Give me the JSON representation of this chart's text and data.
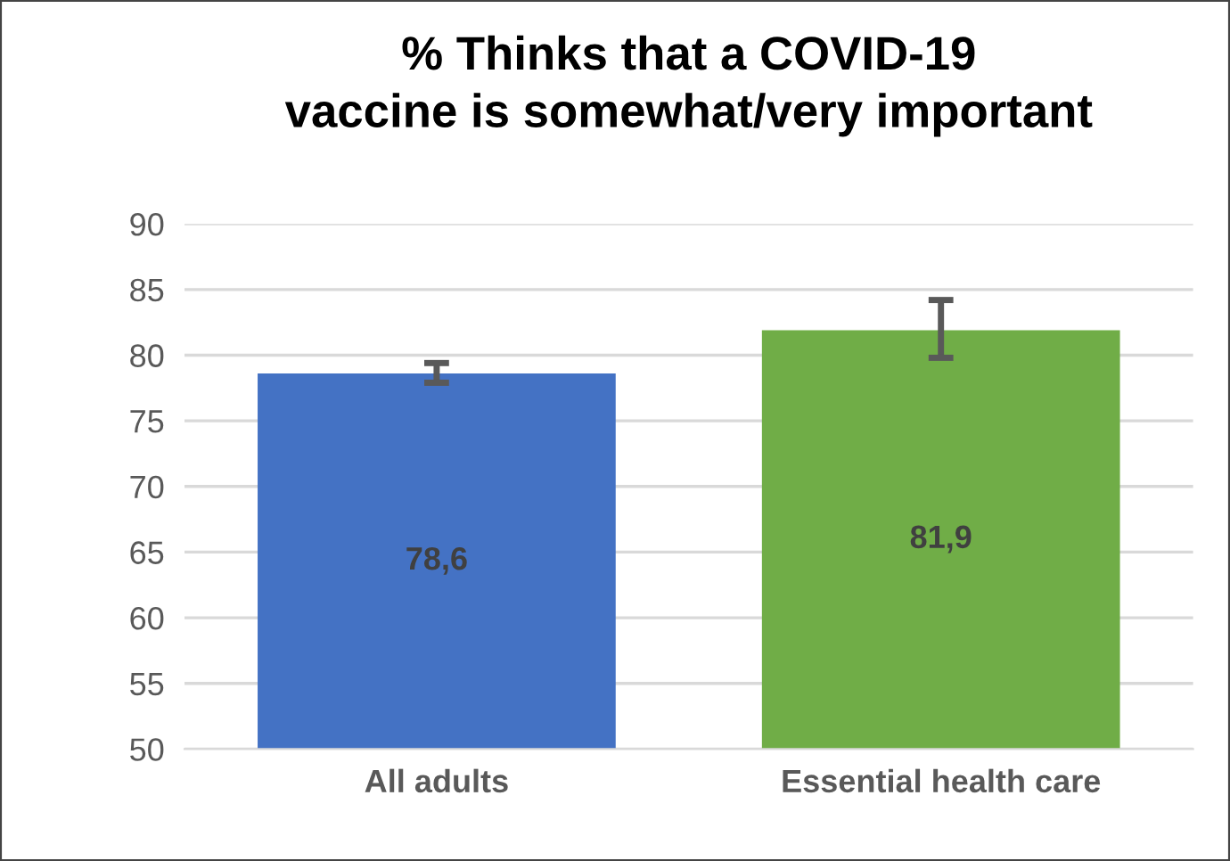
{
  "chart_data": {
    "type": "bar",
    "title": "% Thinks that a COVID-19\nvaccine is somewhat/very important",
    "categories": [
      "All adults",
      "Essential health care"
    ],
    "values": [
      78.6,
      81.9
    ],
    "colors": [
      "#4472c4",
      "#70ad47"
    ],
    "errors": [
      [
        77.9,
        79.4
      ],
      [
        79.8,
        84.2
      ]
    ],
    "value_labels": [
      "78,6",
      "81,9"
    ],
    "ylim": [
      50,
      90
    ],
    "yticks": [
      50,
      55,
      60,
      65,
      70,
      75,
      80,
      85,
      90
    ],
    "grid": "y"
  }
}
